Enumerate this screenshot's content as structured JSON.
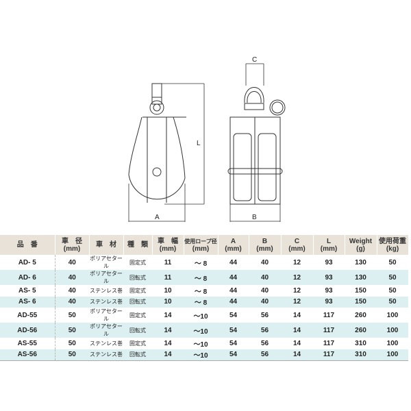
{
  "drawing": {
    "labels": {
      "L": "L",
      "A": "A",
      "B": "B",
      "C": "C"
    }
  },
  "table": {
    "headers": [
      {
        "l1": "品　番",
        "l2": ""
      },
      {
        "l1": "車　径",
        "l2": "(mm)"
      },
      {
        "l1": "車　材",
        "l2": ""
      },
      {
        "l1": "種　類",
        "l2": ""
      },
      {
        "l1": "車　幅",
        "l2": "(mm)"
      },
      {
        "l1": "使用ロープ径",
        "l2": "(mm)"
      },
      {
        "l1": "A",
        "l2": "(mm)"
      },
      {
        "l1": "B",
        "l2": "(mm)"
      },
      {
        "l1": "C",
        "l2": "(mm)"
      },
      {
        "l1": "L",
        "l2": "(mm)"
      },
      {
        "l1": "Weight",
        "l2": "(g)"
      },
      {
        "l1": "使用荷重",
        "l2": "(kg)"
      }
    ],
    "rows": [
      [
        "AD- 5",
        "40",
        "ポリアセタール",
        "固定式",
        "11",
        "～ 8",
        "44",
        "40",
        "12",
        "93",
        "130",
        "50"
      ],
      [
        "AD- 6",
        "40",
        "ポリアセタール",
        "回転式",
        "11",
        "～ 8",
        "44",
        "40",
        "12",
        "93",
        "130",
        "50"
      ],
      [
        "AS- 5",
        "40",
        "ステンレス巻",
        "固定式",
        "10",
        "～ 8",
        "44",
        "40",
        "12",
        "93",
        "150",
        "50"
      ],
      [
        "AS- 6",
        "40",
        "ステンレス巻",
        "回転式",
        "10",
        "～ 8",
        "44",
        "40",
        "12",
        "93",
        "150",
        "50"
      ],
      [
        "AD-55",
        "50",
        "ポリアセタール",
        "固定式",
        "14",
        "～10",
        "54",
        "56",
        "14",
        "117",
        "260",
        "100"
      ],
      [
        "AD-56",
        "50",
        "ポリアセタール",
        "回転式",
        "14",
        "～10",
        "54",
        "56",
        "14",
        "117",
        "260",
        "100"
      ],
      [
        "AS-55",
        "50",
        "ステンレス巻",
        "固定式",
        "14",
        "～10",
        "54",
        "56",
        "14",
        "117",
        "310",
        "100"
      ],
      [
        "AS-56",
        "50",
        "ステンレス巻",
        "回転式",
        "14",
        "～10",
        "54",
        "56",
        "14",
        "117",
        "310",
        "100"
      ]
    ]
  },
  "colors": {
    "header_bg": "#e8e2d8",
    "alt_row_bg": "#dcf0f2"
  }
}
